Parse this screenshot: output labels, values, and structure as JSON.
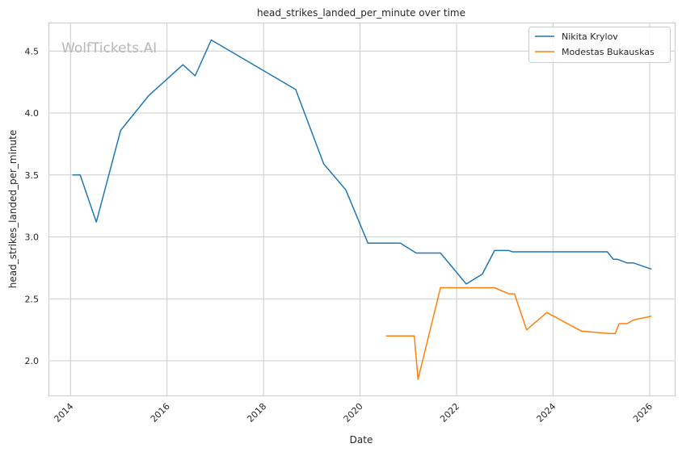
{
  "watermark": "WolfTickets.AI",
  "chart_data": {
    "type": "line",
    "title": "head_strikes_landed_per_minute over time",
    "xlabel": "Date",
    "ylabel": "head_strikes_landed_per_minute",
    "x_ticks": [
      "2014",
      "2016",
      "2018",
      "2020",
      "2022",
      "2024",
      "2026"
    ],
    "y_ticks": [
      "2.0",
      "2.5",
      "3.0",
      "3.5",
      "4.0",
      "4.5"
    ],
    "xlim": [
      "2013-07-18",
      "2026-07-10"
    ],
    "ylim": [
      1.72,
      4.73
    ],
    "grid": true,
    "legend_position": "top-right",
    "series": [
      {
        "name": "Nikita Krylov",
        "color": "#1f77b4",
        "x": [
          "2014-01-15",
          "2014-03-15",
          "2014-07-15",
          "2015-01-15",
          "2015-08-15",
          "2016-05-01",
          "2016-08-01",
          "2016-12-01",
          "2018-09-01",
          "2019-04-01",
          "2019-09-15",
          "2020-03-01",
          "2020-11-01",
          "2021-03-01",
          "2021-09-01",
          "2022-03-15",
          "2022-07-15",
          "2022-10-15",
          "2023-02-01",
          "2023-03-01",
          "2025-02-15",
          "2025-04-01",
          "2025-05-01",
          "2025-07-15",
          "2025-09-01",
          "2026-01-15"
        ],
        "y": [
          3.5,
          3.5,
          3.12,
          3.86,
          4.14,
          4.39,
          4.3,
          4.59,
          4.19,
          3.59,
          3.38,
          2.95,
          2.95,
          2.87,
          2.87,
          2.62,
          2.7,
          2.89,
          2.89,
          2.88,
          2.88,
          2.82,
          2.82,
          2.79,
          2.79,
          2.74
        ]
      },
      {
        "name": "Modestas Bukauskas",
        "color": "#ff7f0e",
        "x": [
          "2020-07-15",
          "2021-02-15",
          "2021-03-15",
          "2021-09-01",
          "2022-10-15",
          "2023-02-01",
          "2023-03-15",
          "2023-06-15",
          "2023-11-15",
          "2024-08-01",
          "2025-03-01",
          "2025-04-15",
          "2025-05-15",
          "2025-07-15",
          "2025-09-01",
          "2026-01-15"
        ],
        "y": [
          2.2,
          2.2,
          1.85,
          2.59,
          2.59,
          2.54,
          2.54,
          2.25,
          2.39,
          2.24,
          2.22,
          2.22,
          2.3,
          2.3,
          2.33,
          2.36
        ]
      }
    ]
  }
}
